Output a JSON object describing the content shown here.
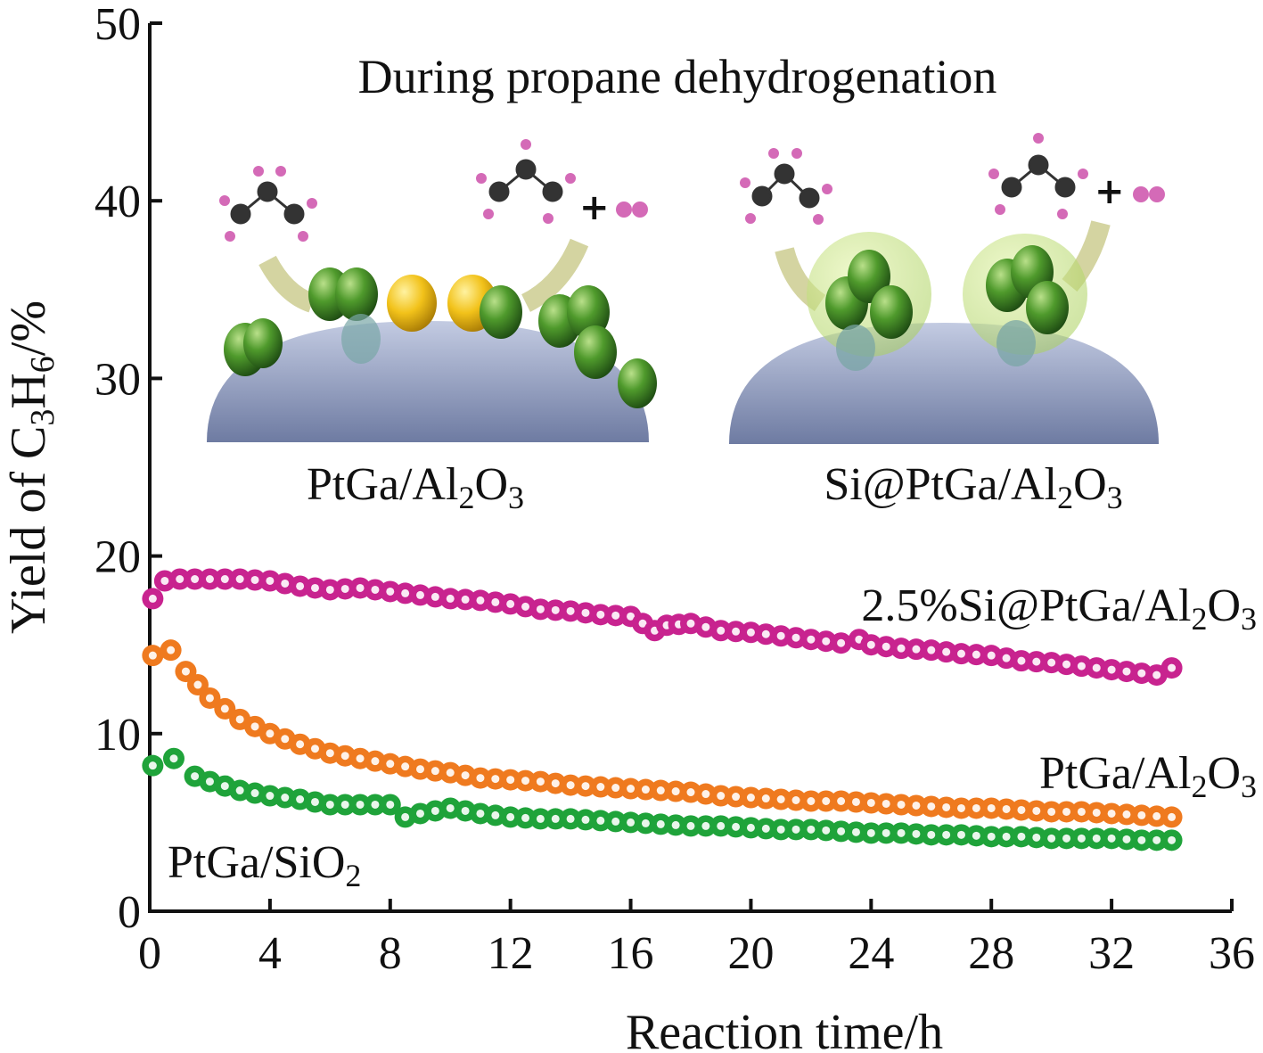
{
  "chart_data": {
    "type": "scatter",
    "xlabel": "Reaction time/h",
    "ylabel_parts": [
      "Yield of C",
      "3",
      "H",
      "6",
      "/%"
    ],
    "xlim": [
      0,
      36
    ],
    "ylim": [
      0,
      50
    ],
    "xticks": [
      "0",
      "4",
      "8",
      "12",
      "16",
      "20",
      "24",
      "28",
      "32",
      "36"
    ],
    "yticks": [
      "0",
      "10",
      "20",
      "30",
      "40",
      "50"
    ],
    "grid": false,
    "series": [
      {
        "label_parts": [
          "2.5%Si@PtGa/Al",
          "2",
          "O",
          "3"
        ],
        "color": "#c8238f",
        "points": [
          [
            0.1,
            17.6
          ],
          [
            0.5,
            18.6
          ],
          [
            1.0,
            18.7
          ],
          [
            2.0,
            18.7
          ],
          [
            3.0,
            18.7
          ],
          [
            4.0,
            18.6
          ],
          [
            5.0,
            18.3
          ],
          [
            6.0,
            18.1
          ],
          [
            7.0,
            18.2
          ],
          [
            8.0,
            18.0
          ],
          [
            9.0,
            17.8
          ],
          [
            10.0,
            17.6
          ],
          [
            11.0,
            17.5
          ],
          [
            12.0,
            17.3
          ],
          [
            13.0,
            17.0
          ],
          [
            14.0,
            16.9
          ],
          [
            15.0,
            16.7
          ],
          [
            16.0,
            16.6
          ],
          [
            16.8,
            15.8
          ],
          [
            17.2,
            16.1
          ],
          [
            18.0,
            16.2
          ],
          [
            19.0,
            15.8
          ],
          [
            20.0,
            15.7
          ],
          [
            21.0,
            15.5
          ],
          [
            22.0,
            15.3
          ],
          [
            23.0,
            15.1
          ],
          [
            23.6,
            15.3
          ],
          [
            24.0,
            15.0
          ],
          [
            25.0,
            14.8
          ],
          [
            26.0,
            14.7
          ],
          [
            27.0,
            14.5
          ],
          [
            28.0,
            14.4
          ],
          [
            29.0,
            14.1
          ],
          [
            30.0,
            14.0
          ],
          [
            31.0,
            13.8
          ],
          [
            32.0,
            13.6
          ],
          [
            33.0,
            13.4
          ],
          [
            33.5,
            13.3
          ],
          [
            34.0,
            13.7
          ]
        ]
      },
      {
        "label_parts": [
          "PtGa/Al",
          "2",
          "O",
          "3"
        ],
        "color": "#ef7a1f",
        "points": [
          [
            0.1,
            14.4
          ],
          [
            0.7,
            14.7
          ],
          [
            1.2,
            13.5
          ],
          [
            2.0,
            12.0
          ],
          [
            3.0,
            10.8
          ],
          [
            4.0,
            10.0
          ],
          [
            5.0,
            9.4
          ],
          [
            6.0,
            8.9
          ],
          [
            7.0,
            8.6
          ],
          [
            8.0,
            8.3
          ],
          [
            9.0,
            8.0
          ],
          [
            10.0,
            7.8
          ],
          [
            11.0,
            7.5
          ],
          [
            12.0,
            7.4
          ],
          [
            13.0,
            7.3
          ],
          [
            14.0,
            7.1
          ],
          [
            15.0,
            7.0
          ],
          [
            16.0,
            6.9
          ],
          [
            17.0,
            6.8
          ],
          [
            18.0,
            6.7
          ],
          [
            19.0,
            6.5
          ],
          [
            20.0,
            6.4
          ],
          [
            21.0,
            6.3
          ],
          [
            22.0,
            6.2
          ],
          [
            23.0,
            6.2
          ],
          [
            24.0,
            6.1
          ],
          [
            25.0,
            6.0
          ],
          [
            26.0,
            5.9
          ],
          [
            27.0,
            5.8
          ],
          [
            28.0,
            5.8
          ],
          [
            29.0,
            5.7
          ],
          [
            30.0,
            5.6
          ],
          [
            31.0,
            5.6
          ],
          [
            32.0,
            5.5
          ],
          [
            33.0,
            5.4
          ],
          [
            34.0,
            5.3
          ]
        ]
      },
      {
        "label_parts": [
          "PtGa/SiO",
          "2"
        ],
        "color": "#1fa33a",
        "points": [
          [
            0.1,
            8.2
          ],
          [
            0.8,
            8.6
          ],
          [
            1.5,
            7.6
          ],
          [
            2.0,
            7.3
          ],
          [
            3.0,
            6.8
          ],
          [
            4.0,
            6.5
          ],
          [
            5.0,
            6.3
          ],
          [
            6.0,
            6.0
          ],
          [
            7.0,
            6.0
          ],
          [
            8.0,
            6.0
          ],
          [
            8.5,
            5.3
          ],
          [
            9.0,
            5.5
          ],
          [
            10.0,
            5.8
          ],
          [
            11.0,
            5.5
          ],
          [
            12.0,
            5.3
          ],
          [
            13.0,
            5.2
          ],
          [
            14.0,
            5.2
          ],
          [
            15.0,
            5.1
          ],
          [
            16.0,
            5.0
          ],
          [
            17.0,
            4.9
          ],
          [
            18.0,
            4.8
          ],
          [
            19.0,
            4.8
          ],
          [
            20.0,
            4.7
          ],
          [
            21.0,
            4.6
          ],
          [
            22.0,
            4.6
          ],
          [
            23.0,
            4.5
          ],
          [
            24.0,
            4.4
          ],
          [
            25.0,
            4.4
          ],
          [
            26.0,
            4.3
          ],
          [
            27.0,
            4.3
          ],
          [
            28.0,
            4.2
          ],
          [
            29.0,
            4.2
          ],
          [
            30.0,
            4.1
          ],
          [
            31.0,
            4.1
          ],
          [
            32.0,
            4.1
          ],
          [
            33.0,
            4.0
          ],
          [
            34.0,
            4.0
          ]
        ]
      }
    ],
    "inset": {
      "title": "During propane dehydrogenation",
      "left_label_parts": [
        "PtGa/Al",
        "2",
        "O",
        "3"
      ],
      "right_label_parts": [
        "Si@PtGa/Al",
        "2",
        "O",
        "3"
      ],
      "plus_sign": "+"
    }
  }
}
